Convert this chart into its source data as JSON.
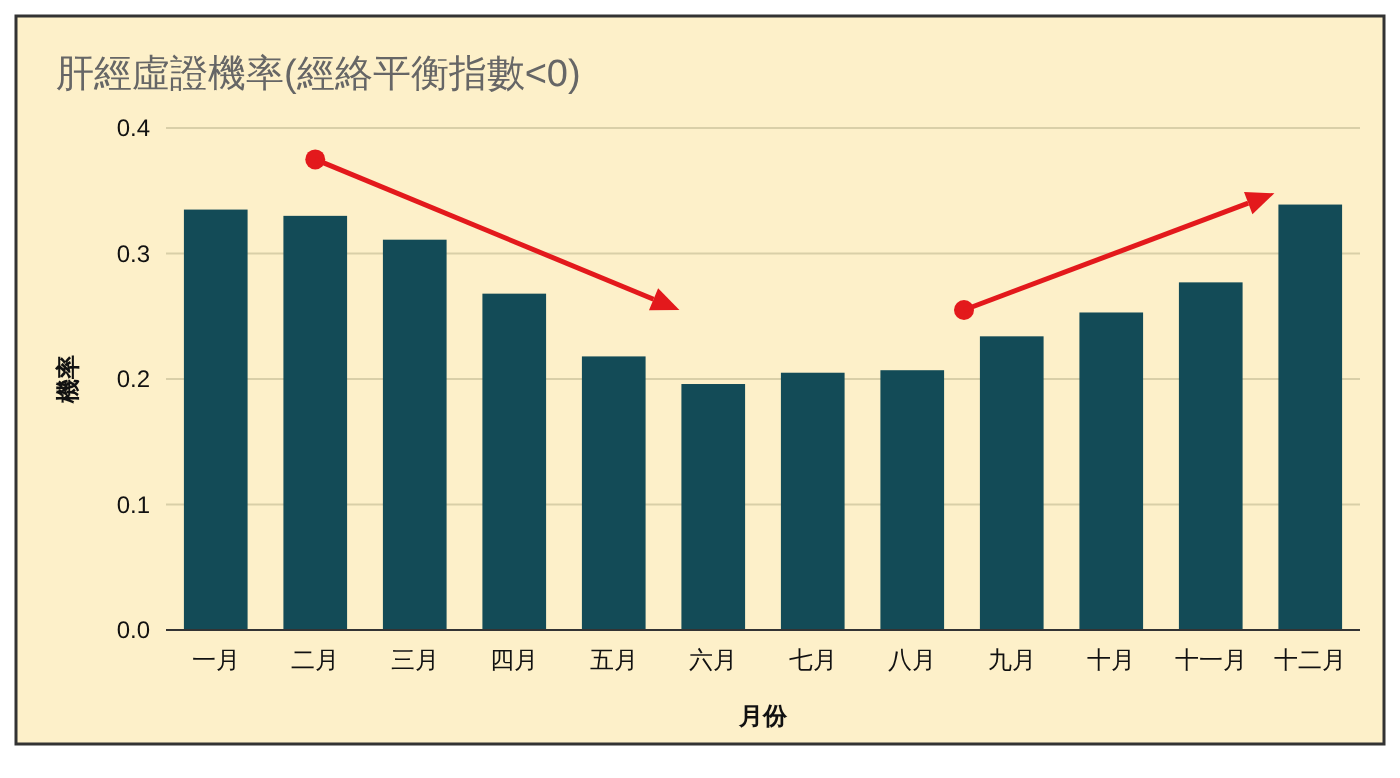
{
  "chart_data": {
    "type": "bar",
    "title": "肝經虛證機率(經絡平衡指數<0)",
    "xlabel": "月份",
    "ylabel": "機率",
    "categories": [
      "一月",
      "二月",
      "三月",
      "四月",
      "五月",
      "六月",
      "七月",
      "八月",
      "九月",
      "十月",
      "十一月",
      "十二月"
    ],
    "values": [
      0.335,
      0.33,
      0.311,
      0.268,
      0.218,
      0.196,
      0.205,
      0.207,
      0.234,
      0.253,
      0.277,
      0.339
    ],
    "color": "#134b57",
    "ylim": [
      0,
      0.4
    ],
    "yticks": [
      {
        "value": 0,
        "label": "0.0"
      },
      0.1,
      0.2,
      0.3,
      0.4
    ],
    "grid": "y"
  }
}
